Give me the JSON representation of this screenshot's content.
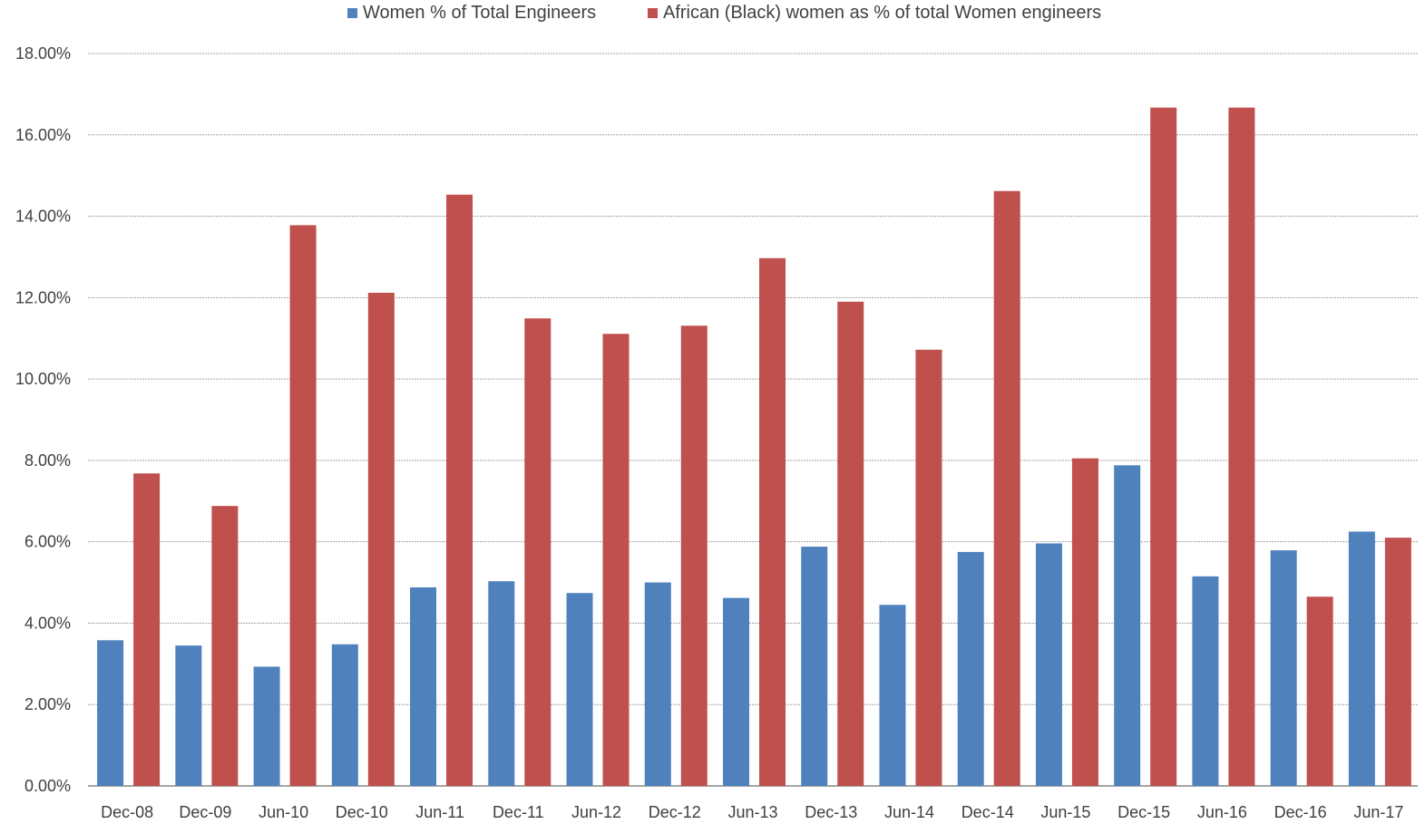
{
  "chart_data": {
    "type": "bar",
    "title": "",
    "xlabel": "",
    "ylabel": "",
    "categories": [
      "Dec-08",
      "Dec-09",
      "Jun-10",
      "Dec-10",
      "Jun-11",
      "Dec-11",
      "Jun-12",
      "Dec-12",
      "Jun-13",
      "Dec-13",
      "Jun-14",
      "Dec-14",
      "Jun-15",
      "Dec-15",
      "Jun-16",
      "Dec-16",
      "Jun-17"
    ],
    "series": [
      {
        "name": "Women % of Total Engineers",
        "color": "#4f81bd",
        "values": [
          3.58,
          3.45,
          2.93,
          3.48,
          4.88,
          5.03,
          4.74,
          5.0,
          4.62,
          5.88,
          4.45,
          5.75,
          5.96,
          7.88,
          5.15,
          5.79,
          6.25
        ]
      },
      {
        "name": "African (Black) women as % of total Women engineers",
        "color": "#c0504d",
        "values": [
          7.68,
          6.88,
          13.78,
          12.12,
          14.53,
          11.49,
          11.11,
          11.31,
          12.97,
          11.9,
          10.72,
          14.62,
          8.05,
          16.67,
          16.67,
          4.65,
          6.1
        ]
      }
    ],
    "ylim": [
      0,
      18
    ],
    "yticks": [
      "0.00%",
      "2.00%",
      "4.00%",
      "6.00%",
      "8.00%",
      "10.00%",
      "12.00%",
      "14.00%",
      "16.00%",
      "18.00%"
    ],
    "gridlines": true,
    "legend_position": "top"
  }
}
